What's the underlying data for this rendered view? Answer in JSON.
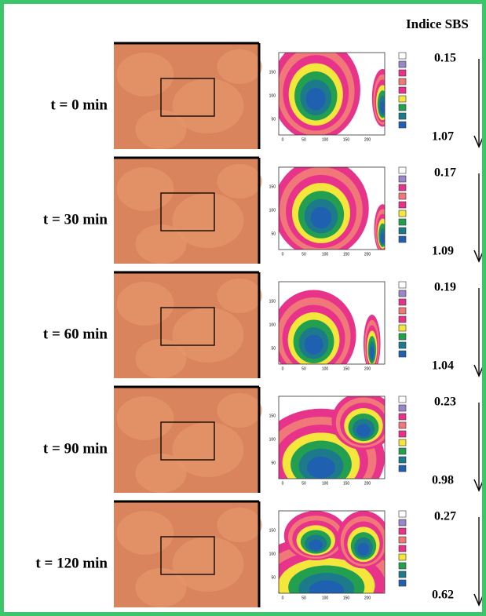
{
  "header": {
    "title": "Indice SBS"
  },
  "plot_axes": {
    "xticks": [
      "0",
      "50",
      "100",
      "150",
      "200"
    ],
    "yticks": [
      "50",
      "100",
      "150"
    ]
  },
  "rows": [
    {
      "label": "t = 0 min",
      "top_value": "0.15",
      "bottom_value": "1.07"
    },
    {
      "label": "t = 30 min",
      "top_value": "0.17",
      "bottom_value": "1.09"
    },
    {
      "label": "t = 60 min",
      "top_value": "0.19",
      "bottom_value": "1.04"
    },
    {
      "label": "t = 90 min",
      "top_value": "0.23",
      "bottom_value": "0.98"
    },
    {
      "label": "t = 120 min",
      "top_value": "0.27",
      "bottom_value": "0.62"
    }
  ]
}
